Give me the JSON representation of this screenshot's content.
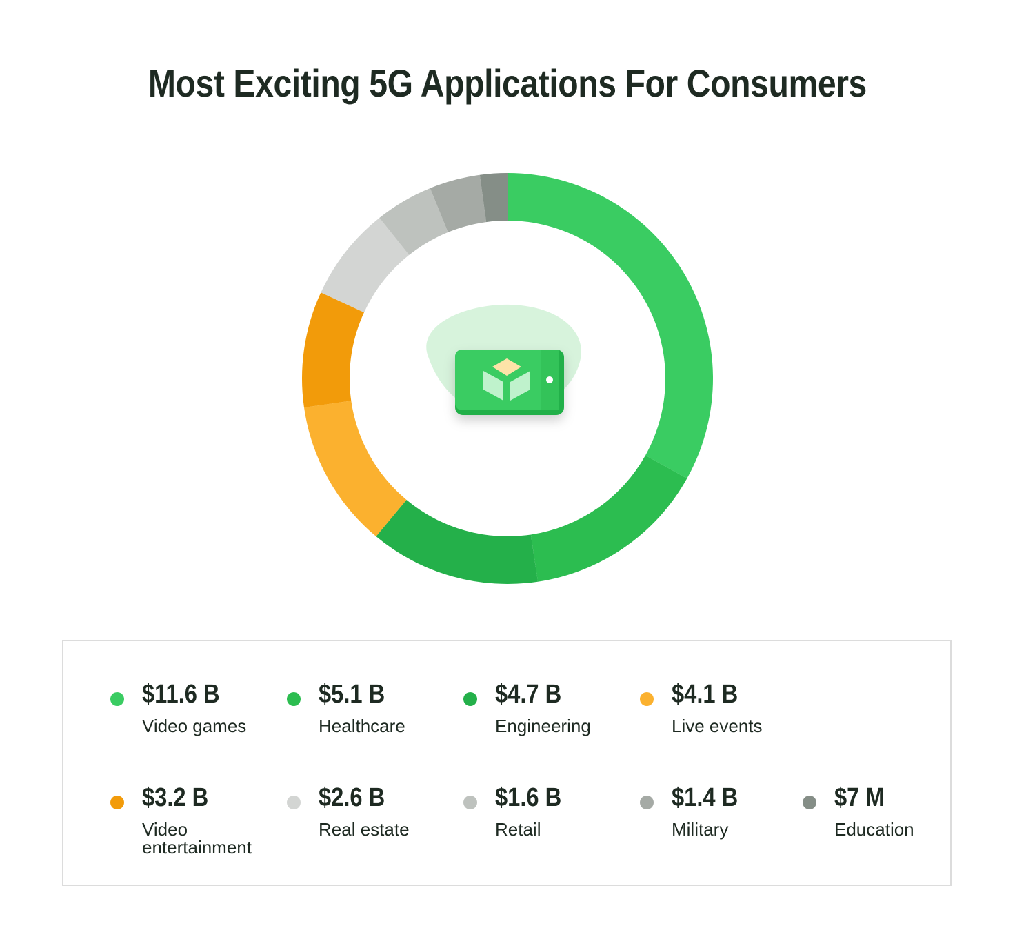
{
  "title": "Most Exciting 5G Applications For Consumers",
  "chart_data": {
    "type": "pie",
    "variant": "donut",
    "title": "Most Exciting 5G Applications For Consumers",
    "center_icon": "mobile-game-cube-icon",
    "categories": [
      "Video games",
      "Healthcare",
      "Engineering",
      "Live events",
      "Video entertainment",
      "Real estate",
      "Retail",
      "Military",
      "Education"
    ],
    "display_values": [
      "$11.6 B",
      "$5.1 B",
      "$4.7 B",
      "$4.1 B",
      "$3.2 B",
      "$2.6 B",
      "$1.6 B",
      "$1.4 B",
      "$7 M"
    ],
    "values_billion_usd": [
      11.6,
      5.1,
      4.7,
      4.1,
      3.2,
      2.6,
      1.6,
      1.4,
      0.007
    ],
    "colors": [
      "#3acc62",
      "#2cbd50",
      "#24b04a",
      "#fbb12f",
      "#f29b0a",
      "#d3d5d3",
      "#bec2be",
      "#a5aaa5",
      "#858e87"
    ],
    "legend_placement": "bottom"
  }
}
